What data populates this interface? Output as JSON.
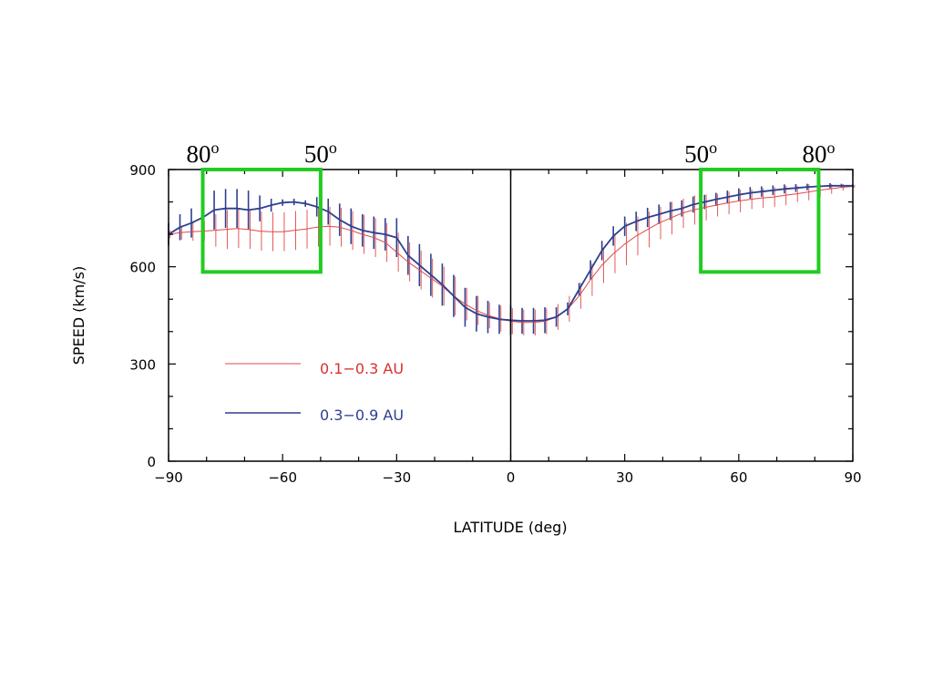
{
  "chart_data": {
    "type": "line",
    "title": "",
    "xlabel": "LATITUDE (deg)",
    "ylabel": "SPEED (km/s)",
    "xlim": [
      -90,
      90
    ],
    "ylim": [
      0,
      900
    ],
    "xticks": [
      -90,
      -60,
      -30,
      0,
      30,
      60,
      90
    ],
    "yticks": [
      0,
      300,
      600,
      900
    ],
    "xtick_labels": [
      "−90",
      "−60",
      "−30",
      "0",
      "30",
      "60",
      "90"
    ],
    "ytick_labels": [
      "0",
      "300",
      "600",
      "900"
    ],
    "grid": false,
    "legend_placement": "left-lower-middle",
    "colors": {
      "red": "#e04848",
      "blue": "#2e3f8f",
      "green": "#22cc22"
    },
    "series": [
      {
        "name": "0.1−0.3 AU",
        "color": "#e04848",
        "x": [
          -90,
          -87,
          -84,
          -81,
          -78,
          -75,
          -72,
          -69,
          -66,
          -63,
          -60,
          -57,
          -54,
          -51,
          -48,
          -45,
          -42,
          -39,
          -36,
          -33,
          -30,
          -27,
          -24,
          -21,
          -18,
          -15,
          -12,
          -9,
          -6,
          -3,
          0,
          3,
          6,
          9,
          12,
          15,
          18,
          21,
          24,
          27,
          30,
          33,
          36,
          39,
          42,
          45,
          48,
          51,
          54,
          57,
          60,
          63,
          66,
          69,
          72,
          75,
          78,
          81,
          84,
          87,
          90
        ],
        "y": [
          700,
          705,
          708,
          710,
          712,
          715,
          718,
          715,
          710,
          708,
          708,
          712,
          716,
          722,
          725,
          722,
          712,
          700,
          690,
          675,
          645,
          615,
          590,
          565,
          540,
          510,
          485,
          465,
          450,
          440,
          432,
          428,
          428,
          432,
          445,
          470,
          510,
          560,
          605,
          640,
          670,
          695,
          715,
          735,
          750,
          765,
          775,
          783,
          790,
          797,
          803,
          808,
          812,
          815,
          820,
          825,
          830,
          836,
          840,
          845,
          848
        ],
        "error": [
          12,
          22,
          28,
          30,
          50,
          60,
          60,
          60,
          60,
          60,
          60,
          60,
          60,
          60,
          60,
          60,
          60,
          60,
          60,
          60,
          60,
          60,
          60,
          60,
          60,
          60,
          50,
          45,
          40,
          40,
          40,
          40,
          40,
          40,
          40,
          40,
          40,
          50,
          55,
          60,
          65,
          60,
          55,
          50,
          50,
          45,
          45,
          40,
          35,
          35,
          35,
          30,
          30,
          30,
          30,
          25,
          25,
          20,
          15,
          10,
          5
        ]
      },
      {
        "name": "0.3−0.9 AU",
        "color": "#2e3f8f",
        "x": [
          -90,
          -87,
          -84,
          -81,
          -78,
          -75,
          -72,
          -69,
          -66,
          -63,
          -60,
          -57,
          -54,
          -51,
          -48,
          -45,
          -42,
          -39,
          -36,
          -33,
          -30,
          -27,
          -24,
          -21,
          -18,
          -15,
          -12,
          -9,
          -6,
          -3,
          0,
          3,
          6,
          9,
          12,
          15,
          18,
          21,
          24,
          27,
          30,
          33,
          36,
          39,
          42,
          45,
          48,
          51,
          54,
          57,
          60,
          63,
          66,
          69,
          72,
          75,
          78,
          81,
          84,
          87,
          90
        ],
        "y": [
          700,
          722,
          735,
          752,
          775,
          780,
          780,
          775,
          780,
          790,
          798,
          800,
          795,
          785,
          770,
          745,
          725,
          712,
          705,
          700,
          690,
          635,
          605,
          575,
          545,
          510,
          475,
          455,
          445,
          438,
          435,
          433,
          433,
          435,
          445,
          470,
          530,
          590,
          650,
          695,
          725,
          740,
          752,
          762,
          772,
          780,
          792,
          800,
          808,
          815,
          822,
          828,
          832,
          836,
          840,
          843,
          846,
          848,
          850,
          850,
          850
        ],
        "error": [
          35,
          40,
          45,
          50,
          60,
          60,
          60,
          60,
          40,
          20,
          10,
          10,
          10,
          30,
          40,
          50,
          55,
          50,
          50,
          50,
          60,
          60,
          65,
          65,
          65,
          65,
          60,
          55,
          50,
          45,
          45,
          40,
          40,
          40,
          30,
          20,
          20,
          30,
          30,
          30,
          30,
          30,
          30,
          30,
          28,
          25,
          25,
          22,
          20,
          20,
          20,
          18,
          16,
          15,
          14,
          12,
          10,
          10,
          8,
          6,
          4
        ]
      }
    ],
    "annotations": [
      {
        "kind": "box",
        "color": "#22cc22",
        "x_from": -81,
        "x_to": -50,
        "y_from": 584,
        "y_to": 900,
        "labels": [
          "80",
          "50"
        ]
      },
      {
        "kind": "box",
        "color": "#22cc22",
        "x_from": 50,
        "x_to": 81,
        "y_from": 584,
        "y_to": 900,
        "labels": [
          "50",
          "80"
        ]
      }
    ],
    "annotation_sup": "o",
    "zero_line": true
  }
}
